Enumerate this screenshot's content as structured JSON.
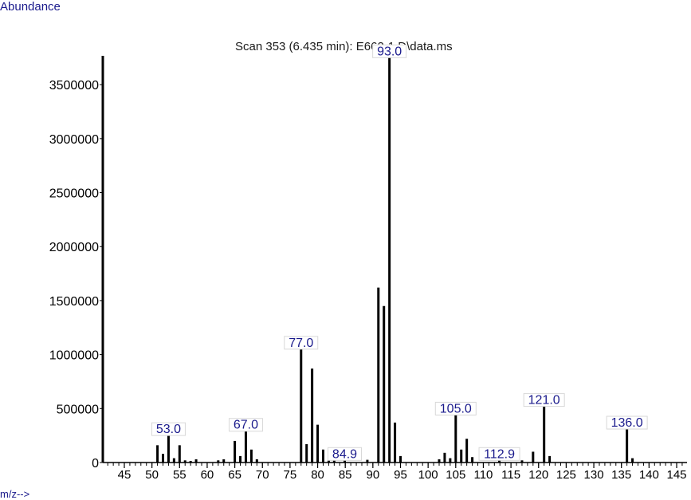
{
  "chart_data": {
    "type": "bar",
    "title": "Scan 353 (6.435 min): E662-1.D\\data.ms",
    "ylabel": "Abundance",
    "xlabel": "m/z-->",
    "xlim": [
      40,
      148
    ],
    "ylim": [
      0,
      3900000
    ],
    "yticks": [
      0,
      500000,
      1000000,
      1500000,
      2000000,
      2500000,
      3000000,
      3500000
    ],
    "ytick_labels": [
      "0",
      "500000",
      "1000000",
      "1500000",
      "2000000",
      "2500000",
      "3000000",
      "3500000"
    ],
    "xticks": [
      45,
      50,
      55,
      60,
      65,
      70,
      75,
      80,
      85,
      90,
      95,
      100,
      105,
      110,
      115,
      120,
      125,
      130,
      135,
      140,
      145
    ],
    "xtick_labels": [
      "45",
      "50",
      "55",
      "60",
      "65",
      "70",
      "75",
      "80",
      "85",
      "90",
      "95",
      "100",
      "105",
      "110",
      "115",
      "120",
      "125",
      "130",
      "135",
      "140",
      "145"
    ],
    "peaks": [
      {
        "mz": 51,
        "abundance": 160000
      },
      {
        "mz": 52,
        "abundance": 80000
      },
      {
        "mz": 53,
        "abundance": 250000,
        "label": "53.0"
      },
      {
        "mz": 54,
        "abundance": 40000
      },
      {
        "mz": 55,
        "abundance": 160000
      },
      {
        "mz": 56,
        "abundance": 20000
      },
      {
        "mz": 57,
        "abundance": 15000
      },
      {
        "mz": 58,
        "abundance": 30000
      },
      {
        "mz": 62,
        "abundance": 20000
      },
      {
        "mz": 63,
        "abundance": 30000
      },
      {
        "mz": 65,
        "abundance": 200000
      },
      {
        "mz": 66,
        "abundance": 60000
      },
      {
        "mz": 67,
        "abundance": 290000,
        "label": "67.0"
      },
      {
        "mz": 68,
        "abundance": 120000
      },
      {
        "mz": 69,
        "abundance": 30000
      },
      {
        "mz": 77,
        "abundance": 1050000,
        "label": "77.0"
      },
      {
        "mz": 78,
        "abundance": 170000
      },
      {
        "mz": 79,
        "abundance": 870000
      },
      {
        "mz": 80,
        "abundance": 350000
      },
      {
        "mz": 81,
        "abundance": 120000
      },
      {
        "mz": 82,
        "abundance": 20000
      },
      {
        "mz": 83,
        "abundance": 25000
      },
      {
        "mz": 84.9,
        "abundance": 20000,
        "label": "84.9"
      },
      {
        "mz": 89,
        "abundance": 25000
      },
      {
        "mz": 91,
        "abundance": 1620000
      },
      {
        "mz": 92,
        "abundance": 1450000
      },
      {
        "mz": 93,
        "abundance": 3750000,
        "label": "93.0"
      },
      {
        "mz": 94,
        "abundance": 370000
      },
      {
        "mz": 95,
        "abundance": 60000
      },
      {
        "mz": 102,
        "abundance": 30000
      },
      {
        "mz": 103,
        "abundance": 90000
      },
      {
        "mz": 104,
        "abundance": 40000
      },
      {
        "mz": 105,
        "abundance": 440000,
        "label": "105.0"
      },
      {
        "mz": 106,
        "abundance": 120000
      },
      {
        "mz": 107,
        "abundance": 220000
      },
      {
        "mz": 108,
        "abundance": 50000
      },
      {
        "mz": 112.9,
        "abundance": 20000,
        "label": "112.9"
      },
      {
        "mz": 117,
        "abundance": 20000
      },
      {
        "mz": 119,
        "abundance": 100000
      },
      {
        "mz": 121,
        "abundance": 520000,
        "label": "121.0"
      },
      {
        "mz": 122,
        "abundance": 60000
      },
      {
        "mz": 136,
        "abundance": 310000,
        "label": "136.0"
      },
      {
        "mz": 137,
        "abundance": 40000
      }
    ]
  }
}
